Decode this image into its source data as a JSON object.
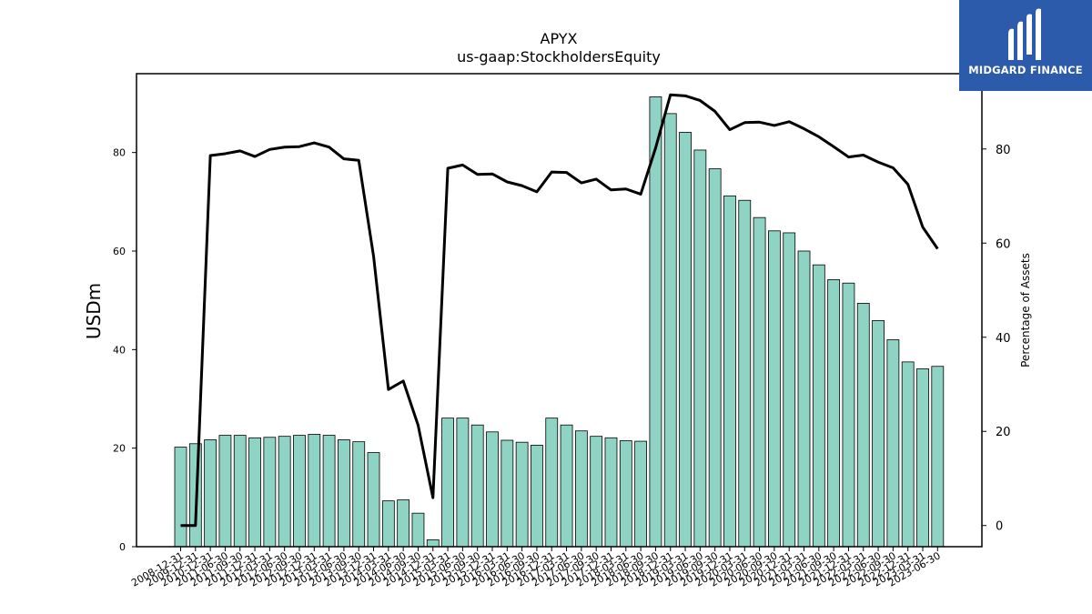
{
  "brand": {
    "name": "MIDGARD FINANCE",
    "bg_color": "#2c5bac"
  },
  "chart_data": {
    "type": "bar",
    "title": "APYX",
    "subtitle": "us-gaap:StockholdersEquity",
    "ylabel": "USDm",
    "y2label": "Percentage of Assets",
    "ylim": [
      0,
      96
    ],
    "y2lim": [
      -4.5,
      96
    ],
    "yticks": [
      0,
      20,
      40,
      60,
      80
    ],
    "y2ticks": [
      0,
      20,
      40,
      60,
      80
    ],
    "bar_color": "#8fd3c4",
    "line_color": "#000000",
    "categories": [
      "2008-12-31",
      "2009-12-31",
      "2010-12-31",
      "2011-06-30",
      "2011-09-30",
      "2011-12-31",
      "2012-03-31",
      "2012-06-30",
      "2012-09-30",
      "2012-12-31",
      "2013-03-31",
      "2013-06-30",
      "2013-09-30",
      "2013-12-31",
      "2014-03-31",
      "2014-06-30",
      "2014-09-30",
      "2014-12-31",
      "2015-03-31",
      "2015-06-30",
      "2015-09-30",
      "2015-12-31",
      "2016-03-31",
      "2016-06-30",
      "2016-09-30",
      "2016-12-31",
      "2017-03-31",
      "2017-06-30",
      "2017-09-30",
      "2017-12-31",
      "2018-03-31",
      "2018-06-30",
      "2018-09-30",
      "2018-12-31",
      "2019-03-31",
      "2019-06-30",
      "2019-09-30",
      "2019-12-31",
      "2020-03-31",
      "2020-06-30",
      "2020-09-30",
      "2020-12-31",
      "2021-03-31",
      "2021-06-30",
      "2021-09-30",
      "2021-12-31",
      "2022-03-31",
      "2022-06-30",
      "2022-09-30",
      "2022-12-31",
      "2023-03-31",
      "2023-06-30"
    ],
    "series": [
      {
        "kind": "bar",
        "values": [
          20.2,
          20.9,
          21.7,
          22.6,
          22.6,
          22.1,
          22.2,
          22.4,
          22.6,
          22.8,
          22.6,
          21.7,
          21.3,
          19.1,
          9.3,
          9.5,
          6.8,
          1.4,
          26.1,
          26.1,
          24.7,
          23.3,
          21.6,
          21.2,
          20.6,
          26.1,
          24.7,
          23.5,
          22.4,
          22.1,
          21.5,
          21.4,
          91.3,
          87.9,
          84.1,
          80.5,
          76.7,
          71.2,
          70.3,
          66.8,
          64.1,
          63.7,
          60.0,
          57.2,
          54.2,
          53.5,
          49.4,
          45.9,
          42.0,
          37.5,
          36.1,
          36.6
        ]
      },
      {
        "kind": "line",
        "values": [
          0.0,
          0.0,
          78.6,
          79.0,
          79.6,
          78.4,
          79.9,
          80.4,
          80.5,
          81.3,
          80.4,
          77.9,
          77.6,
          57.2,
          28.9,
          30.7,
          21.3,
          5.9,
          75.9,
          76.6,
          74.6,
          74.7,
          73.0,
          72.2,
          70.9,
          75.1,
          75.0,
          72.8,
          73.6,
          71.3,
          71.5,
          70.4,
          80.2,
          91.5,
          91.3,
          90.3,
          88.0,
          84.1,
          85.6,
          85.7,
          85.0,
          85.8,
          84.3,
          82.6,
          80.5,
          78.3,
          78.7,
          77.2,
          76.0,
          72.5,
          63.4,
          58.8
        ]
      }
    ]
  }
}
